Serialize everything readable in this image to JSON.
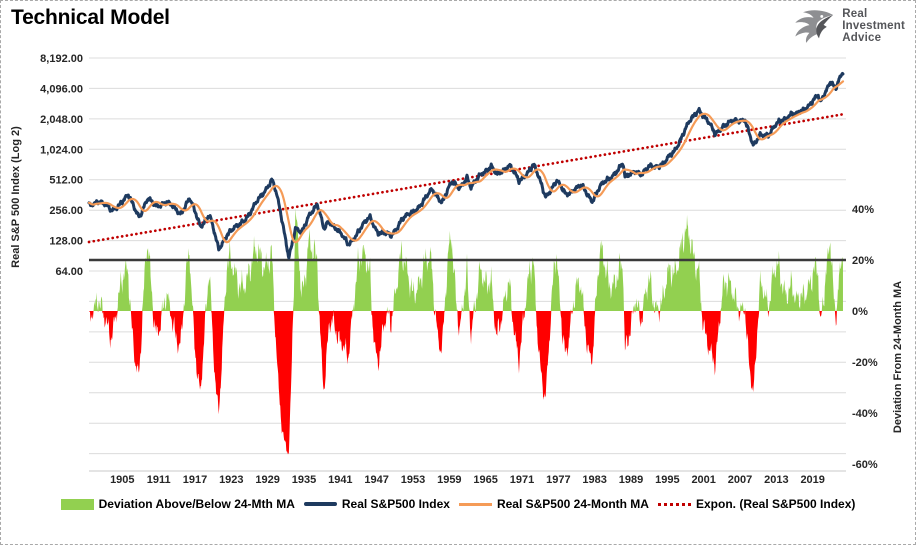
{
  "title": "Technical Model",
  "logo": {
    "icon": "eagle-head",
    "lines": [
      "Real",
      "Investment",
      "Advice"
    ]
  },
  "colors": {
    "background": "#ffffff",
    "gridline": "#dcdcdc",
    "axis_line": "#c9c9c9",
    "axis_text": "#262626",
    "reference_line": "#3a3a3a",
    "price_line": "#1e3a5f",
    "ma_line": "#f59b57",
    "trend_line": "#c00000",
    "bar_positive": "#92d050",
    "bar_negative": "#ff0000",
    "logo_gray": "#55565a"
  },
  "chart_data": {
    "type": "line",
    "title": "Technical Model",
    "grid": "horizontal",
    "x_axis": {
      "domain_years": [
        1899.5,
        2024.5
      ],
      "tick_labels": [
        "1905",
        "1911",
        "1917",
        "1923",
        "1929",
        "1935",
        "1941",
        "1947",
        "1953",
        "1959",
        "1965",
        "1971",
        "1977",
        "1983",
        "1989",
        "1995",
        "2001",
        "2007",
        "2013",
        "2019"
      ],
      "tick_values": [
        1905,
        1911,
        1917,
        1923,
        1929,
        1935,
        1941,
        1947,
        1953,
        1959,
        1965,
        1971,
        1977,
        1983,
        1989,
        1995,
        2001,
        2007,
        2013,
        2019
      ]
    },
    "left_axis": {
      "title": "Real S&P 500 Index (Log 2)",
      "scale": "log2",
      "tick_labels": [
        "8,192.00",
        "4,096.00",
        "2,048.00",
        "1,024.00",
        "512.00",
        "256.00",
        "128.00",
        "64.00"
      ],
      "tick_values": [
        8192,
        4096,
        2048,
        1024,
        512,
        256,
        128,
        64
      ]
    },
    "right_axis": {
      "title": "Deviation From 24-Month MA",
      "unit": "percent",
      "tick_labels": [
        "40%",
        "20%",
        "0%",
        "-20%",
        "-40%",
        "-60%"
      ],
      "tick_values": [
        40,
        20,
        0,
        -20,
        -40,
        -60
      ],
      "range": [
        -60,
        100
      ]
    },
    "reference_line": {
      "value_pct": 20,
      "color": "#3a3a3a"
    },
    "series": [
      {
        "name": "Real S&P500 Index",
        "type": "line",
        "color": "#1e3a5f",
        "anchors_year_value": [
          [
            1899.5,
            285
          ],
          [
            1901,
            320
          ],
          [
            1903.2,
            255
          ],
          [
            1906,
            350
          ],
          [
            1907.8,
            225
          ],
          [
            1909.2,
            325
          ],
          [
            1910.5,
            285
          ],
          [
            1912.3,
            305
          ],
          [
            1914.6,
            240
          ],
          [
            1916.1,
            330
          ],
          [
            1917.9,
            180
          ],
          [
            1919.4,
            230
          ],
          [
            1920.9,
            104
          ],
          [
            1922.3,
            150
          ],
          [
            1924.2,
            178
          ],
          [
            1926.2,
            248
          ],
          [
            1928.2,
            370
          ],
          [
            1929.7,
            525
          ],
          [
            1930.4,
            380
          ],
          [
            1931.2,
            225
          ],
          [
            1932.5,
            90
          ],
          [
            1933.6,
            168
          ],
          [
            1934.6,
            148
          ],
          [
            1935.9,
            238
          ],
          [
            1937.2,
            292
          ],
          [
            1938.3,
            162
          ],
          [
            1939.1,
            202
          ],
          [
            1940.3,
            172
          ],
          [
            1942.3,
            116
          ],
          [
            1944.1,
            162
          ],
          [
            1945.9,
            218
          ],
          [
            1947.2,
            156
          ],
          [
            1949.4,
            142
          ],
          [
            1951.1,
            208
          ],
          [
            1952.9,
            238
          ],
          [
            1956.1,
            398
          ],
          [
            1957.8,
            315
          ],
          [
            1959.4,
            475
          ],
          [
            1960.7,
            432
          ],
          [
            1961.9,
            545
          ],
          [
            1962.6,
            415
          ],
          [
            1964.2,
            595
          ],
          [
            1965.9,
            685
          ],
          [
            1966.8,
            565
          ],
          [
            1968.9,
            725
          ],
          [
            1970.5,
            485
          ],
          [
            1972.9,
            725
          ],
          [
            1974.9,
            352
          ],
          [
            1976.7,
            492
          ],
          [
            1978.2,
            372
          ],
          [
            1980.8,
            442
          ],
          [
            1982.6,
            322
          ],
          [
            1983.9,
            432
          ],
          [
            1986.1,
            585
          ],
          [
            1987.7,
            725
          ],
          [
            1988.0,
            525
          ],
          [
            1989.6,
            645
          ],
          [
            1990.8,
            565
          ],
          [
            1992.1,
            695
          ],
          [
            1994.4,
            725
          ],
          [
            1996.1,
            985
          ],
          [
            1998.6,
            1870
          ],
          [
            2000.2,
            2590
          ],
          [
            2001.8,
            1860
          ],
          [
            2002.9,
            1440
          ],
          [
            2004.1,
            1760
          ],
          [
            2007.8,
            2070
          ],
          [
            2009.2,
            1065
          ],
          [
            2010.4,
            1460
          ],
          [
            2011.8,
            1430
          ],
          [
            2013.6,
            1960
          ],
          [
            2015.6,
            2310
          ],
          [
            2016.2,
            2190
          ],
          [
            2018.7,
            2960
          ],
          [
            2019.9,
            3450
          ],
          [
            2020.25,
            2870
          ],
          [
            2021.9,
            4950
          ],
          [
            2022.8,
            4050
          ],
          [
            2024.1,
            6050
          ]
        ]
      },
      {
        "name": "Real S&P500 24-Month MA",
        "type": "line",
        "color": "#f59b57",
        "derived_from": "24-month trailing moving average of Real S&P500 Index"
      },
      {
        "name": "Expon. (Real S&P500 Index)",
        "type": "dotted_trend",
        "color": "#c00000",
        "endpoints_year_value": [
          [
            1899.5,
            124
          ],
          [
            2024.5,
            2300
          ]
        ]
      },
      {
        "name": "Deviation Above/Below 24-Mth MA",
        "type": "bar",
        "positive_color": "#92d050",
        "negative_color": "#ff0000",
        "derived_from": "Real S&P500 Index / 24-Month MA - 1",
        "unit": "percent",
        "approx_extremes_pct": {
          "max_green": 44,
          "deepest_red": -59
        }
      }
    ]
  },
  "legend": {
    "items": [
      {
        "label": "Deviation Above/Below 24-Mth MA",
        "swatch": "bar",
        "color": "#92d050"
      },
      {
        "label": "Real S&P500 Index",
        "swatch": "thick-line",
        "color": "#1e3a5f"
      },
      {
        "label": "Real S&P500 24-Month MA",
        "swatch": "line",
        "color": "#f59b57"
      },
      {
        "label": "Expon. (Real S&P500 Index)",
        "swatch": "dotted",
        "color": "#c00000"
      }
    ]
  }
}
